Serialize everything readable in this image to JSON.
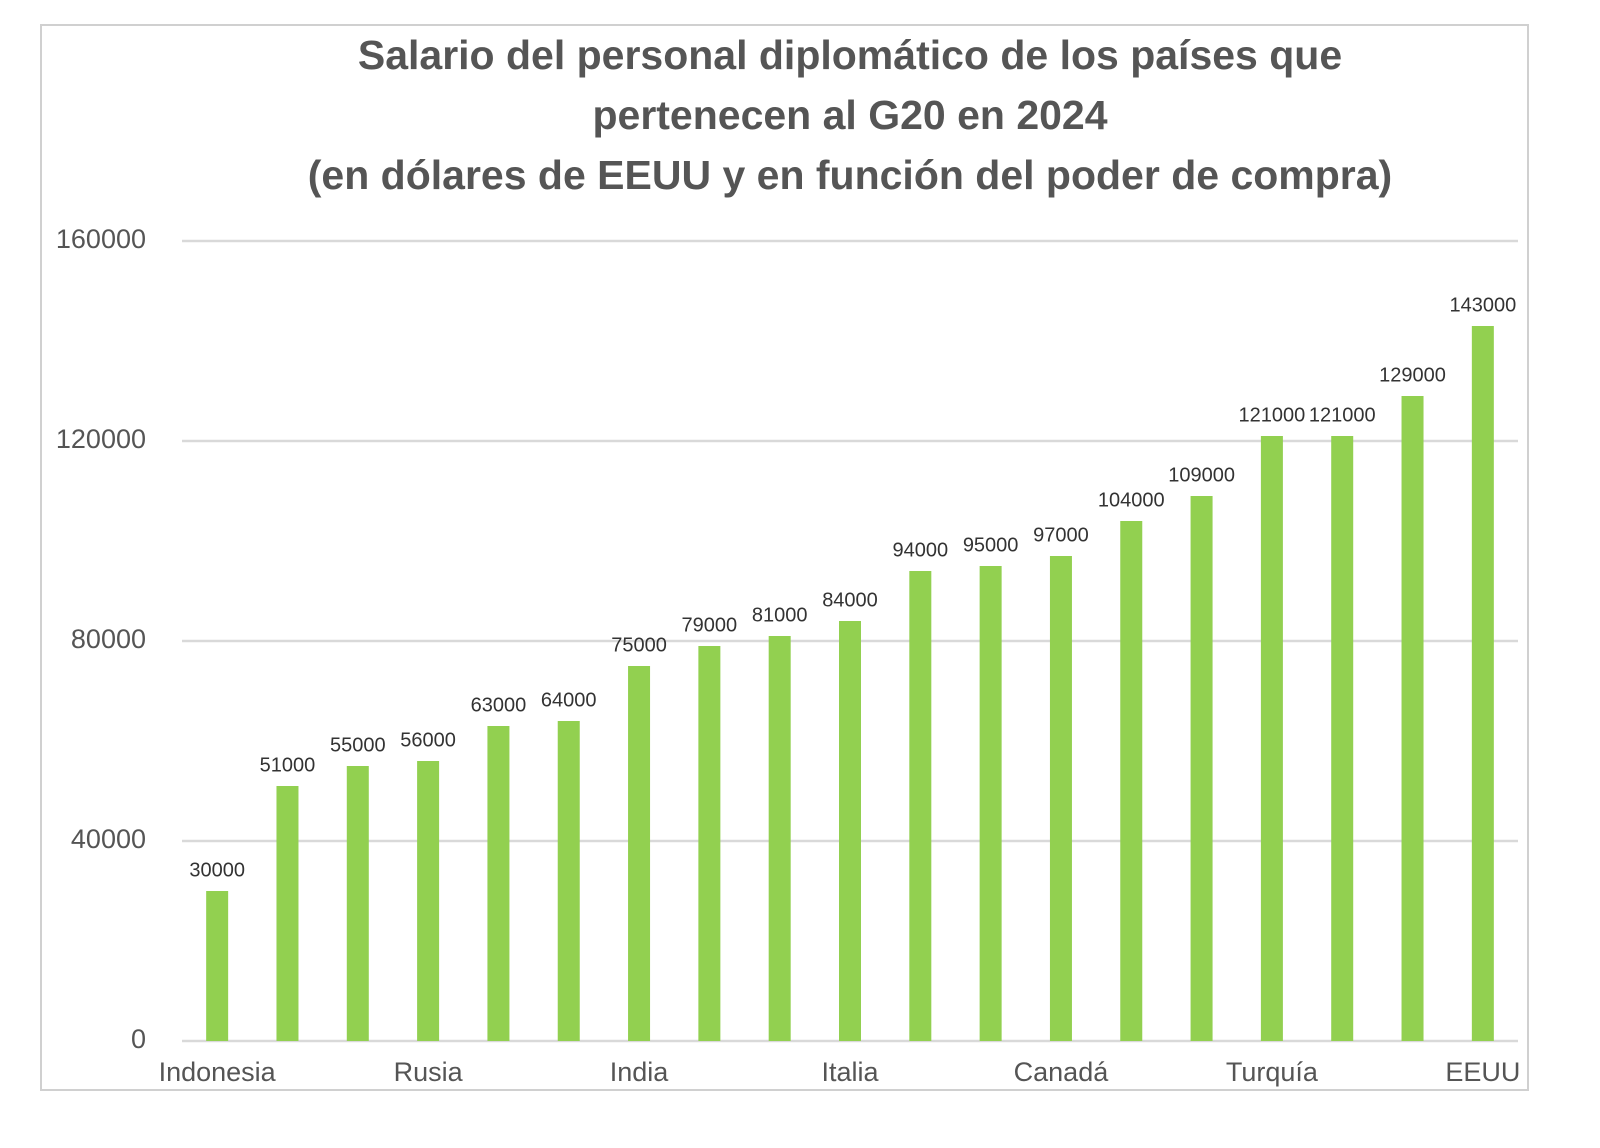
{
  "chart_data": {
    "type": "bar",
    "title": [
      "Salario del personal diplomático de los países que",
      "pertenecen al G20 en 2024",
      "(en dólares de EEUU y en función del poder de compra)"
    ],
    "categories": [
      "Indonesia",
      null,
      null,
      "Rusia",
      null,
      null,
      "India",
      null,
      null,
      "Italia",
      null,
      null,
      "Canadá",
      null,
      null,
      "Turquía",
      null,
      null,
      "EEUU"
    ],
    "values": [
      30000,
      51000,
      55000,
      56000,
      63000,
      64000,
      75000,
      79000,
      81000,
      84000,
      94000,
      95000,
      97000,
      104000,
      109000,
      121000,
      121000,
      129000,
      143000
    ],
    "color": "#92d050",
    "ylim": [
      0,
      160000
    ],
    "yticks": [
      0,
      40000,
      80000,
      120000,
      160000
    ],
    "grid": true
  }
}
